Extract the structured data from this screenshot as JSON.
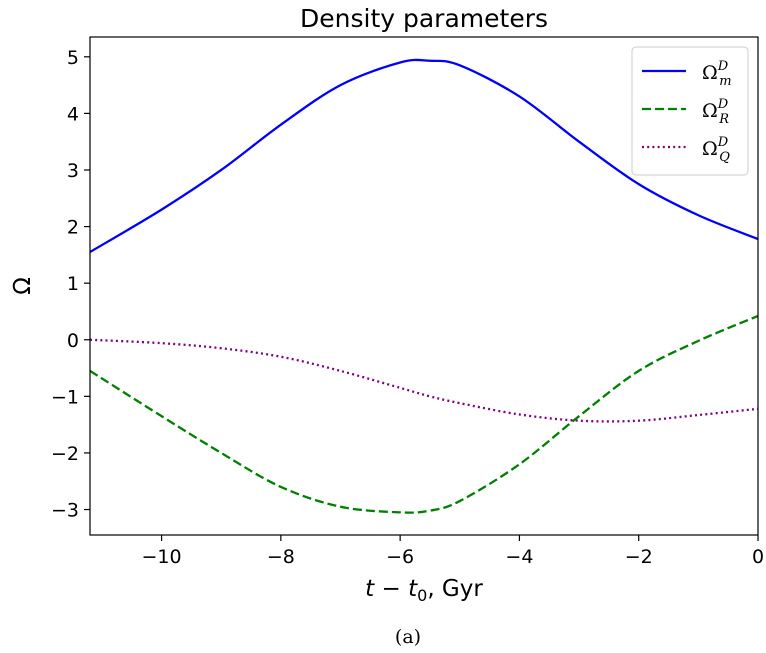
{
  "chart_data": {
    "type": "line",
    "title": "Density parameters",
    "xlabel": "t − t0, Gyr",
    "xlabel_parts": {
      "t": "t",
      "minus": " − ",
      "t0": "t",
      "t0_sub": "0",
      "rest": ", Gyr"
    },
    "ylabel": "Ω",
    "caption": "(a)",
    "xlim": [
      -11.2,
      0
    ],
    "ylim": [
      -3.45,
      5.35
    ],
    "xticks": [
      -10,
      -8,
      -6,
      -4,
      -2,
      0
    ],
    "xtick_labels": [
      "−10",
      "−8",
      "−6",
      "−4",
      "−2",
      "0"
    ],
    "yticks": [
      -3,
      -2,
      -1,
      0,
      1,
      2,
      3,
      4,
      5
    ],
    "ytick_labels": [
      "−3",
      "−2",
      "−1",
      "0",
      "1",
      "2",
      "3",
      "4",
      "5"
    ],
    "grid": false,
    "legend_position": "top-right",
    "x": [
      -11.2,
      -10,
      -9,
      -8,
      -7,
      -6,
      -5.5,
      -5,
      -4,
      -3,
      -2,
      -1,
      0
    ],
    "series": [
      {
        "name": "Ω_m^D",
        "label_base": "Ω",
        "label_sup": "D",
        "label_sub": "m",
        "color": "#0000ff",
        "style": "solid",
        "values": [
          1.55,
          2.3,
          3.0,
          3.8,
          4.5,
          4.9,
          4.93,
          4.85,
          4.3,
          3.5,
          2.75,
          2.2,
          1.78
        ]
      },
      {
        "name": "Ω_R^D",
        "label_base": "Ω",
        "label_sup": "D",
        "label_sub": "R",
        "color": "#008000",
        "style": "dashed",
        "values": [
          -0.55,
          -1.35,
          -2.0,
          -2.6,
          -2.95,
          -3.05,
          -3.02,
          -2.85,
          -2.2,
          -1.35,
          -0.55,
          -0.02,
          0.42
        ]
      },
      {
        "name": "Ω_Q^D",
        "label_base": "Ω",
        "label_sup": "D",
        "label_sub": "Q",
        "color": "#800080",
        "style": "dotted",
        "values": [
          0.0,
          -0.06,
          -0.15,
          -0.3,
          -0.55,
          -0.85,
          -1.0,
          -1.12,
          -1.32,
          -1.43,
          -1.43,
          -1.33,
          -1.22
        ]
      }
    ]
  }
}
